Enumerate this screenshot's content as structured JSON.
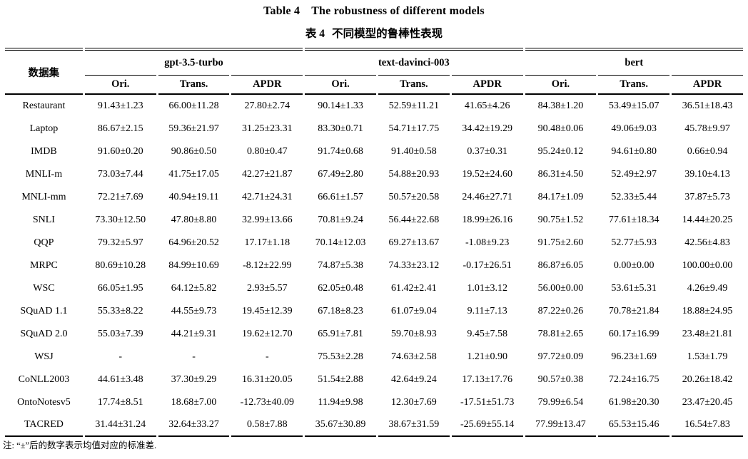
{
  "title": {
    "en_label": "Table 4",
    "en_text": "The robustness of different models",
    "zh_label": "表 4",
    "zh_text": "不同模型的鲁棒性表现"
  },
  "table": {
    "dataset_header": "数据集",
    "groups": [
      {
        "name": "gpt-3.5-turbo"
      },
      {
        "name": "text-davinci-003"
      },
      {
        "name": "bert"
      }
    ],
    "subheaders": [
      "Ori.",
      "Trans.",
      "APDR"
    ],
    "rows": [
      {
        "dataset": "Restaurant",
        "values": [
          "91.43±1.23",
          "66.00±11.28",
          "27.80±2.74",
          "90.14±1.33",
          "52.59±11.21",
          "41.65±4.26",
          "84.38±1.20",
          "53.49±15.07",
          "36.51±18.43"
        ]
      },
      {
        "dataset": "Laptop",
        "values": [
          "86.67±2.15",
          "59.36±21.97",
          "31.25±23.31",
          "83.30±0.71",
          "54.71±17.75",
          "34.42±19.29",
          "90.48±0.06",
          "49.06±9.03",
          "45.78±9.97"
        ]
      },
      {
        "dataset": "IMDB",
        "values": [
          "91.60±0.20",
          "90.86±0.50",
          "0.80±0.47",
          "91.74±0.68",
          "91.40±0.58",
          "0.37±0.31",
          "95.24±0.12",
          "94.61±0.80",
          "0.66±0.94"
        ]
      },
      {
        "dataset": "MNLI-m",
        "values": [
          "73.03±7.44",
          "41.75±17.05",
          "42.27±21.87",
          "67.49±2.80",
          "54.88±20.93",
          "19.52±24.60",
          "86.31±4.50",
          "52.49±2.97",
          "39.10±4.13"
        ]
      },
      {
        "dataset": "MNLI-mm",
        "values": [
          "72.21±7.69",
          "40.94±19.11",
          "42.71±24.31",
          "66.61±1.57",
          "50.57±20.58",
          "24.46±27.71",
          "84.17±1.09",
          "52.33±5.44",
          "37.87±5.73"
        ]
      },
      {
        "dataset": "SNLI",
        "values": [
          "73.30±12.50",
          "47.80±8.80",
          "32.99±13.66",
          "70.81±9.24",
          "56.44±22.68",
          "18.99±26.16",
          "90.75±1.52",
          "77.61±18.34",
          "14.44±20.25"
        ]
      },
      {
        "dataset": "QQP",
        "values": [
          "79.32±5.97",
          "64.96±20.52",
          "17.17±1.18",
          "70.14±12.03",
          "69.27±13.67",
          "-1.08±9.23",
          "91.75±2.60",
          "52.77±5.93",
          "42.56±4.83"
        ]
      },
      {
        "dataset": "MRPC",
        "values": [
          "80.69±10.28",
          "84.99±10.69",
          "-8.12±22.99",
          "74.87±5.38",
          "74.33±23.12",
          "-0.17±26.51",
          "86.87±6.05",
          "0.00±0.00",
          "100.00±0.00"
        ]
      },
      {
        "dataset": "WSC",
        "values": [
          "66.05±1.95",
          "64.12±5.82",
          "2.93±5.57",
          "62.05±0.48",
          "61.42±2.41",
          "1.01±3.12",
          "56.00±0.00",
          "53.61±5.31",
          "4.26±9.49"
        ]
      },
      {
        "dataset": "SQuAD 1.1",
        "values": [
          "55.33±8.22",
          "44.55±9.73",
          "19.45±12.39",
          "67.18±8.23",
          "61.07±9.04",
          "9.11±7.13",
          "87.22±0.26",
          "70.78±21.84",
          "18.88±24.95"
        ]
      },
      {
        "dataset": "SQuAD 2.0",
        "values": [
          "55.03±7.39",
          "44.21±9.31",
          "19.62±12.70",
          "65.91±7.81",
          "59.70±8.93",
          "9.45±7.58",
          "78.81±2.65",
          "60.17±16.99",
          "23.48±21.81"
        ]
      },
      {
        "dataset": "WSJ",
        "values": [
          "-",
          "-",
          "-",
          "75.53±2.28",
          "74.63±2.58",
          "1.21±0.90",
          "97.72±0.09",
          "96.23±1.69",
          "1.53±1.79"
        ]
      },
      {
        "dataset": "CoNLL2003",
        "values": [
          "44.61±3.48",
          "37.30±9.29",
          "16.31±20.05",
          "51.54±2.88",
          "42.64±9.24",
          "17.13±17.76",
          "90.57±0.38",
          "72.24±16.75",
          "20.26±18.42"
        ]
      },
      {
        "dataset": "OntoNotesv5",
        "values": [
          "17.74±8.51",
          "18.68±7.00",
          "-12.73±40.09",
          "11.94±9.98",
          "12.30±7.69",
          "-17.51±51.73",
          "79.99±6.54",
          "61.98±20.30",
          "23.47±20.45"
        ]
      },
      {
        "dataset": "TACRED",
        "values": [
          "31.44±31.24",
          "32.64±33.27",
          "0.58±7.88",
          "35.67±30.89",
          "38.67±31.59",
          "-25.69±55.14",
          "77.99±13.47",
          "65.53±15.46",
          "16.54±7.83"
        ]
      }
    ]
  },
  "footnote": "注: “±”后的数字表示均值对应的标准差."
}
